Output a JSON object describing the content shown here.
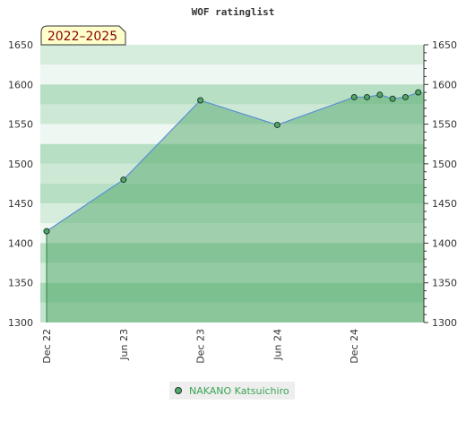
{
  "chart_data": {
    "type": "area",
    "title": "WOF ratinglist",
    "period_label": "2022–2025",
    "xlabel": "",
    "ylabel": "",
    "ylim": [
      1300,
      1650
    ],
    "yticks": [
      1300,
      1350,
      1400,
      1450,
      1500,
      1550,
      1600,
      1650
    ],
    "xlim": [
      "2022-12",
      "2025-06"
    ],
    "xticks": [
      {
        "label": "Dec 22",
        "x": "2022-12"
      },
      {
        "label": "Jun 23",
        "x": "2023-06"
      },
      {
        "label": "Dec 23",
        "x": "2023-12"
      },
      {
        "label": "Jun 24",
        "x": "2024-06"
      },
      {
        "label": "Dec 24",
        "x": "2024-12"
      }
    ],
    "series": [
      {
        "name": "NAKANO Katsuichiro",
        "points": [
          {
            "x": "2022-12",
            "y": 1415
          },
          {
            "x": "2023-06",
            "y": 1480
          },
          {
            "x": "2023-12",
            "y": 1580
          },
          {
            "x": "2024-06",
            "y": 1549
          },
          {
            "x": "2024-12",
            "y": 1584
          },
          {
            "x": "2025-01",
            "y": 1584
          },
          {
            "x": "2025-02",
            "y": 1587
          },
          {
            "x": "2025-03",
            "y": 1582
          },
          {
            "x": "2025-04",
            "y": 1584
          },
          {
            "x": "2025-05",
            "y": 1590
          }
        ]
      }
    ],
    "legend_position": "bottom-center",
    "grid": true,
    "colors": {
      "area": "#52a86a",
      "line": "#5b8fd6",
      "marker": "#52a86a",
      "legend_text": "#3aa655",
      "period_box": "#ffffcc"
    }
  }
}
